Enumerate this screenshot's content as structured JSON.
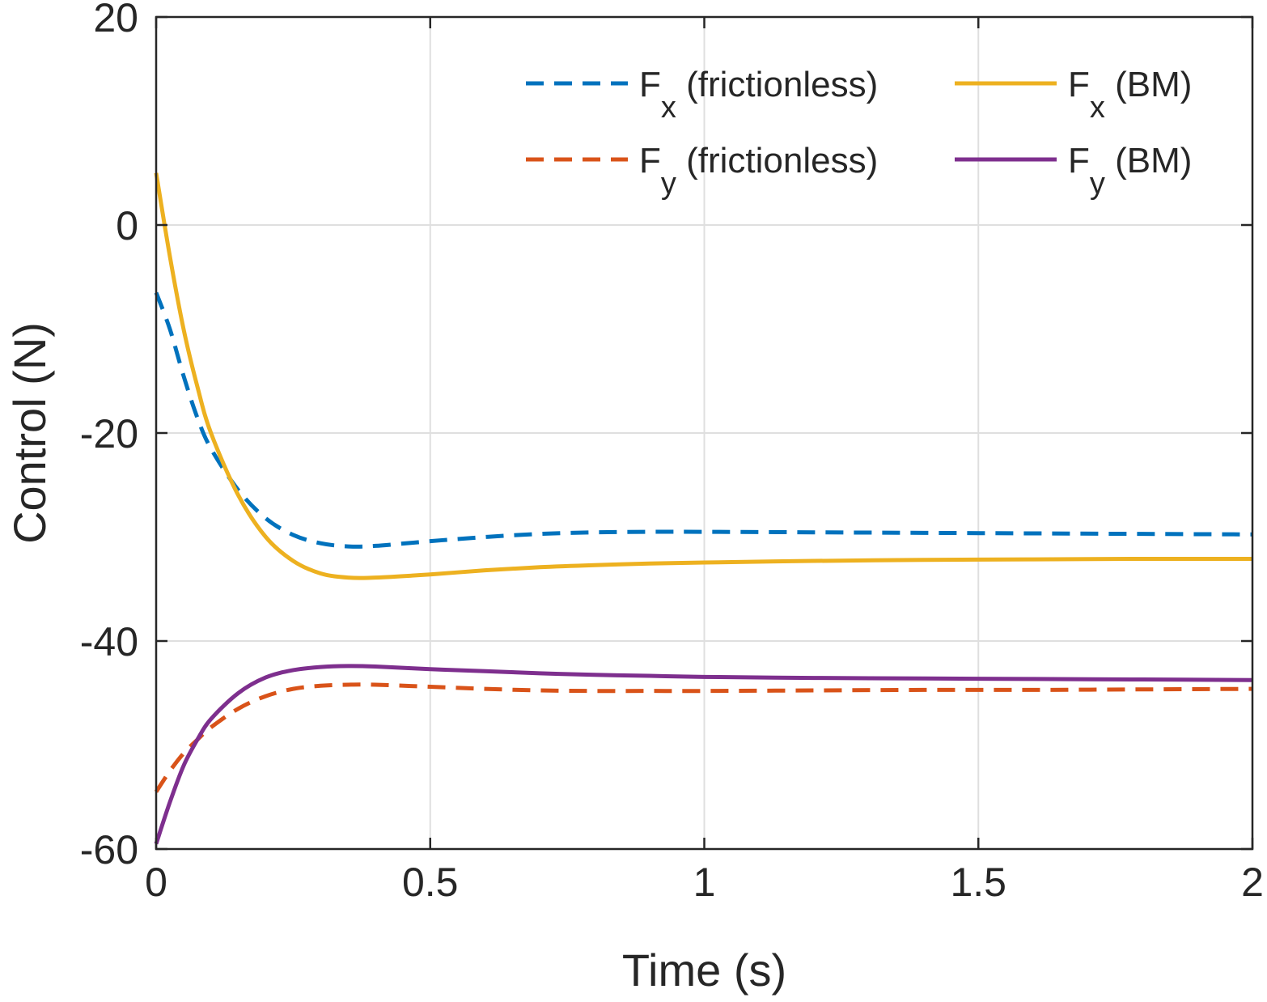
{
  "chart_data": {
    "type": "line",
    "title": "",
    "xlabel": "Time (s)",
    "ylabel": "Control (N)",
    "xlim": [
      0,
      2
    ],
    "ylim": [
      -60,
      20
    ],
    "xticks": [
      0,
      0.5,
      1,
      1.5,
      2
    ],
    "xtick_labels": [
      "0",
      "0.5",
      "1",
      "1.5",
      "2"
    ],
    "yticks": [
      -60,
      -40,
      -20,
      0,
      20
    ],
    "ytick_labels": [
      "-60",
      "-40",
      "-20",
      "0",
      "20"
    ],
    "grid": true,
    "legend_position": "top-right",
    "series": [
      {
        "name": "Fx (frictionless)",
        "label_main": "F",
        "label_sub": "x",
        "label_rest": " (frictionless)",
        "color": "#0072BD",
        "style": "dashed",
        "x": [
          0,
          0.025,
          0.05,
          0.075,
          0.1,
          0.15,
          0.2,
          0.25,
          0.3,
          0.35,
          0.4,
          0.5,
          0.6,
          0.7,
          0.8,
          0.9,
          1.0,
          1.2,
          1.4,
          1.6,
          1.8,
          2.0
        ],
        "values": [
          -6.5,
          -10,
          -14.5,
          -18.5,
          -21.5,
          -25.5,
          -28.2,
          -29.8,
          -30.6,
          -30.9,
          -30.85,
          -30.4,
          -30.0,
          -29.7,
          -29.55,
          -29.5,
          -29.5,
          -29.55,
          -29.6,
          -29.65,
          -29.7,
          -29.75
        ]
      },
      {
        "name": "Fy (frictionless)",
        "label_main": "F",
        "label_sub": "y",
        "label_rest": " (frictionless)",
        "color": "#D95319",
        "style": "dashed",
        "x": [
          0,
          0.025,
          0.05,
          0.075,
          0.1,
          0.15,
          0.2,
          0.25,
          0.3,
          0.35,
          0.4,
          0.5,
          0.6,
          0.7,
          0.8,
          0.9,
          1.0,
          1.2,
          1.4,
          1.6,
          1.8,
          2.0
        ],
        "values": [
          -54.5,
          -52.5,
          -50.8,
          -49.5,
          -48.3,
          -46.5,
          -45.3,
          -44.6,
          -44.3,
          -44.2,
          -44.2,
          -44.4,
          -44.6,
          -44.75,
          -44.8,
          -44.8,
          -44.8,
          -44.75,
          -44.7,
          -44.7,
          -44.65,
          -44.6
        ]
      },
      {
        "name": "Fx (BM)",
        "label_main": "F",
        "label_sub": "x",
        "label_rest": " (BM)",
        "color": "#EDB120",
        "style": "solid",
        "x": [
          0,
          0.025,
          0.05,
          0.075,
          0.1,
          0.15,
          0.2,
          0.25,
          0.3,
          0.35,
          0.4,
          0.5,
          0.6,
          0.7,
          0.8,
          0.9,
          1.0,
          1.2,
          1.4,
          1.6,
          1.8,
          2.0
        ],
        "values": [
          5,
          -3,
          -10,
          -15.5,
          -20,
          -26,
          -30,
          -32.3,
          -33.5,
          -33.9,
          -33.9,
          -33.6,
          -33.2,
          -32.9,
          -32.7,
          -32.55,
          -32.45,
          -32.3,
          -32.2,
          -32.15,
          -32.1,
          -32.1
        ]
      },
      {
        "name": "Fy (BM)",
        "label_main": "F",
        "label_sub": "y",
        "label_rest": " (BM)",
        "color": "#7E2F8E",
        "style": "solid",
        "x": [
          0,
          0.025,
          0.05,
          0.075,
          0.1,
          0.15,
          0.2,
          0.25,
          0.3,
          0.35,
          0.4,
          0.5,
          0.6,
          0.7,
          0.8,
          0.9,
          1.0,
          1.2,
          1.4,
          1.6,
          1.8,
          2.0
        ],
        "values": [
          -59.5,
          -55.5,
          -52,
          -49.5,
          -47.5,
          -45,
          -43.5,
          -42.8,
          -42.5,
          -42.4,
          -42.45,
          -42.7,
          -42.9,
          -43.1,
          -43.25,
          -43.35,
          -43.45,
          -43.55,
          -43.6,
          -43.65,
          -43.7,
          -43.75
        ]
      }
    ]
  }
}
